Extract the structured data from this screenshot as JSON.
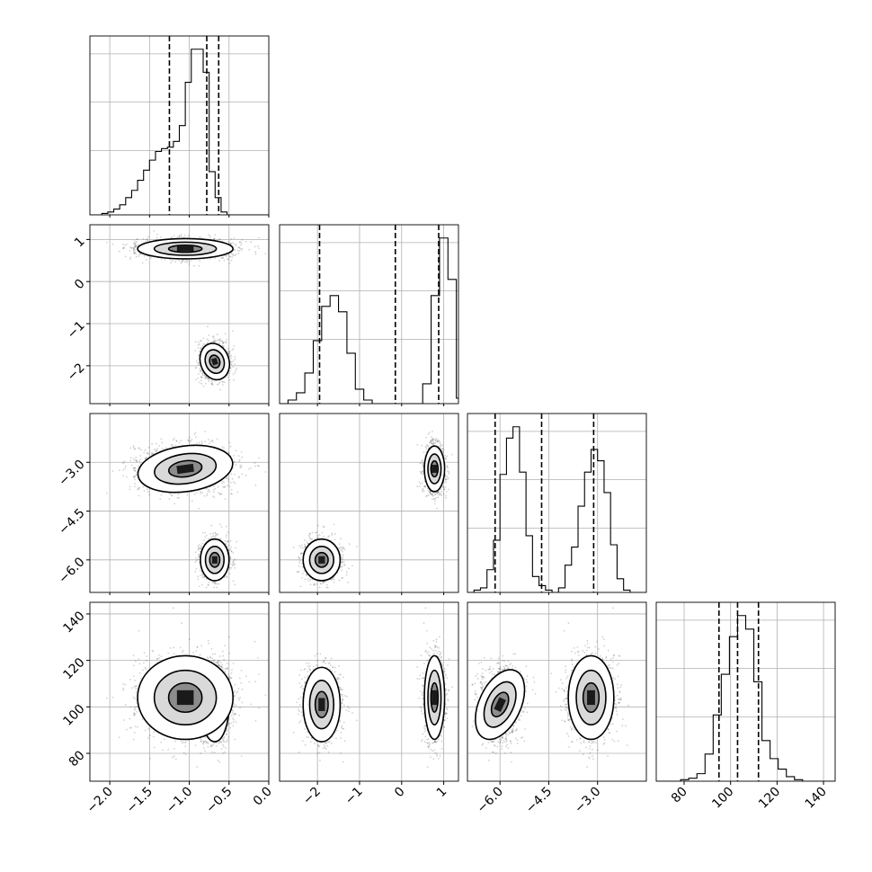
{
  "chart_data": {
    "type": "corner",
    "parameters": 4,
    "colors": {
      "line": "#000000",
      "grid": "#b0b0b0",
      "points": "#000000"
    },
    "grid": true,
    "ranges": [
      [
        -2.25,
        0.0
      ],
      [
        -2.9,
        1.35
      ],
      [
        -7.0,
        -1.5
      ],
      [
        68,
        145
      ]
    ],
    "ticks": [
      {
        "values": [
          -2.0,
          -1.5,
          -1.0,
          -0.5,
          0.0
        ],
        "labels": [
          "−2.0",
          "−1.5",
          "−1.0",
          "−0.5",
          "0.0"
        ]
      },
      {
        "values": [
          -2,
          -1,
          0,
          1
        ],
        "labels": [
          "−2",
          "−1",
          "0",
          "1"
        ]
      },
      {
        "values": [
          -6.0,
          -4.5,
          -3.0
        ],
        "labels": [
          "−6.0",
          "−4.5",
          "−3.0"
        ]
      },
      {
        "values": [
          80,
          100,
          120,
          140
        ],
        "labels": [
          "80",
          "100",
          "120",
          "140"
        ]
      }
    ],
    "quantiles": [
      [
        -1.25,
        -0.78,
        -0.63
      ],
      [
        -1.95,
        -0.15,
        0.88
      ],
      [
        -6.15,
        -4.72,
        -3.12
      ],
      [
        95,
        103,
        112
      ]
    ],
    "histograms": [
      {
        "x_edges_start": -2.25,
        "bin_width": 0.075,
        "counts": [
          0,
          0,
          1,
          2,
          4,
          7,
          12,
          17,
          24,
          31,
          38,
          44,
          46,
          47,
          51,
          62,
          92,
          115,
          115,
          99,
          30,
          12,
          2,
          0,
          0,
          0,
          0,
          0,
          0,
          0
        ]
      },
      {
        "x_edges_start": -2.9,
        "bin_width": 0.2,
        "counts": [
          0,
          2,
          6,
          17,
          35,
          54,
          60,
          51,
          28,
          8,
          2,
          0,
          0,
          0,
          0,
          0,
          0,
          11,
          60,
          92,
          69,
          3
        ]
      },
      {
        "x_edges_start": -7.0,
        "bin_width": 0.2,
        "counts": [
          0,
          1,
          2,
          10,
          23,
          52,
          68,
          73,
          53,
          25,
          7,
          3,
          1,
          0,
          2,
          12,
          20,
          38,
          53,
          63,
          58,
          44,
          21,
          6,
          1,
          0,
          0,
          0
        ]
      },
      {
        "x_edges_start": 68,
        "bin_width": 3.5,
        "counts": [
          0,
          0,
          0,
          1,
          2,
          5,
          18,
          44,
          71,
          96,
          110,
          101,
          66,
          27,
          15,
          8,
          3,
          1,
          0,
          0,
          0,
          0
        ]
      }
    ],
    "modes": [
      {
        "mean": [
          -0.68,
          -1.9,
          -6.0,
          101
        ],
        "sd": [
          0.09,
          0.22,
          0.32,
          8
        ],
        "weight": 0.45
      },
      {
        "mean": [
          -1.05,
          0.78,
          -3.2,
          104
        ],
        "sd": [
          0.3,
          0.12,
          0.35,
          9
        ],
        "weight": 0.55
      }
    ]
  }
}
